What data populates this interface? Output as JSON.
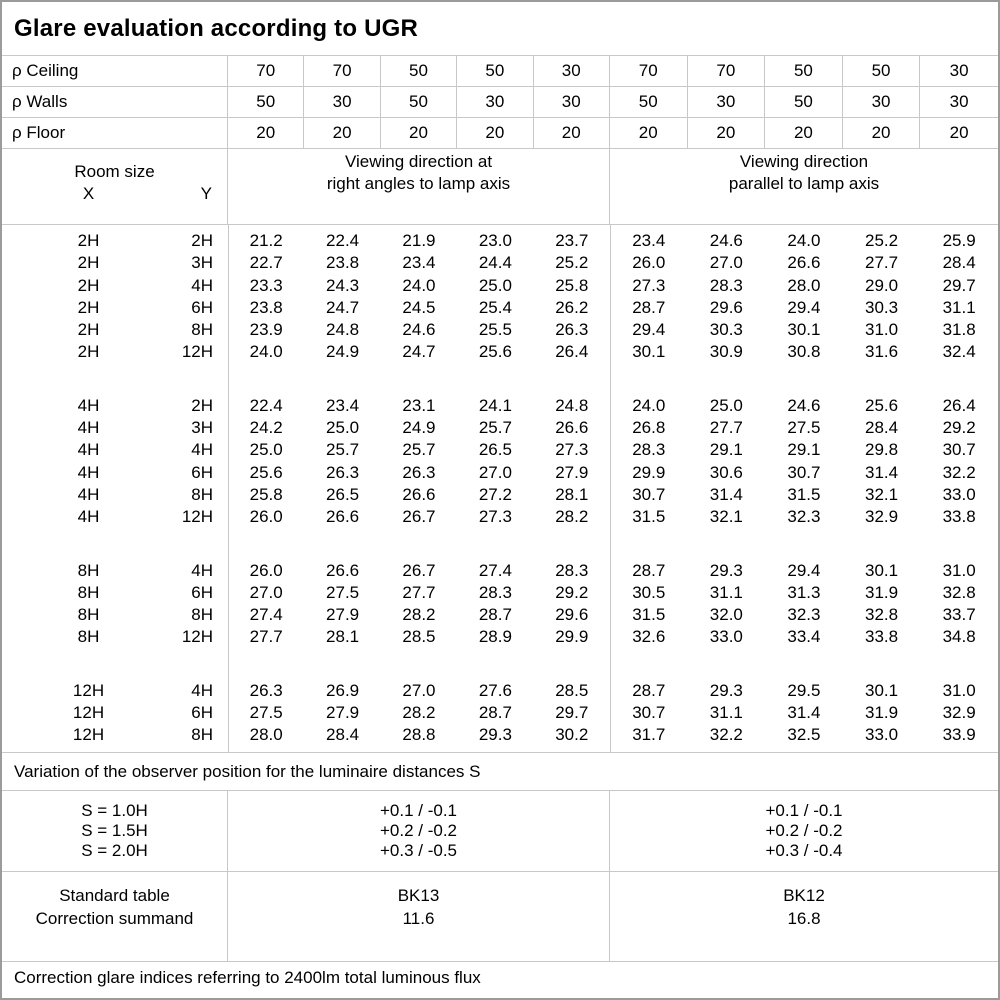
{
  "title": "Glare evaluation according to UGR",
  "reflectance": {
    "rows": [
      {
        "label": "ρ Ceiling",
        "values": [
          "70",
          "70",
          "50",
          "50",
          "30",
          "70",
          "70",
          "50",
          "50",
          "30"
        ]
      },
      {
        "label": "ρ Walls",
        "values": [
          "50",
          "30",
          "50",
          "30",
          "30",
          "50",
          "30",
          "50",
          "30",
          "30"
        ]
      },
      {
        "label": "ρ Floor",
        "values": [
          "20",
          "20",
          "20",
          "20",
          "20",
          "20",
          "20",
          "20",
          "20",
          "20"
        ]
      }
    ]
  },
  "header": {
    "room_size": "Room size",
    "x": "X",
    "y": "Y",
    "right_angles_line1": "Viewing direction at",
    "right_angles_line2": "right angles to lamp axis",
    "parallel_line1": "Viewing direction",
    "parallel_line2": "parallel to lamp axis"
  },
  "ugr_blocks": [
    {
      "rows": [
        {
          "x": "2H",
          "y": "2H",
          "values": [
            "21.2",
            "22.4",
            "21.9",
            "23.0",
            "23.7",
            "23.4",
            "24.6",
            "24.0",
            "25.2",
            "25.9"
          ]
        },
        {
          "x": "2H",
          "y": "3H",
          "values": [
            "22.7",
            "23.8",
            "23.4",
            "24.4",
            "25.2",
            "26.0",
            "27.0",
            "26.6",
            "27.7",
            "28.4"
          ]
        },
        {
          "x": "2H",
          "y": "4H",
          "values": [
            "23.3",
            "24.3",
            "24.0",
            "25.0",
            "25.8",
            "27.3",
            "28.3",
            "28.0",
            "29.0",
            "29.7"
          ]
        },
        {
          "x": "2H",
          "y": "6H",
          "values": [
            "23.8",
            "24.7",
            "24.5",
            "25.4",
            "26.2",
            "28.7",
            "29.6",
            "29.4",
            "30.3",
            "31.1"
          ]
        },
        {
          "x": "2H",
          "y": "8H",
          "values": [
            "23.9",
            "24.8",
            "24.6",
            "25.5",
            "26.3",
            "29.4",
            "30.3",
            "30.1",
            "31.0",
            "31.8"
          ]
        },
        {
          "x": "2H",
          "y": "12H",
          "values": [
            "24.0",
            "24.9",
            "24.7",
            "25.6",
            "26.4",
            "30.1",
            "30.9",
            "30.8",
            "31.6",
            "32.4"
          ]
        }
      ]
    },
    {
      "rows": [
        {
          "x": "4H",
          "y": "2H",
          "values": [
            "22.4",
            "23.4",
            "23.1",
            "24.1",
            "24.8",
            "24.0",
            "25.0",
            "24.6",
            "25.6",
            "26.4"
          ]
        },
        {
          "x": "4H",
          "y": "3H",
          "values": [
            "24.2",
            "25.0",
            "24.9",
            "25.7",
            "26.6",
            "26.8",
            "27.7",
            "27.5",
            "28.4",
            "29.2"
          ]
        },
        {
          "x": "4H",
          "y": "4H",
          "values": [
            "25.0",
            "25.7",
            "25.7",
            "26.5",
            "27.3",
            "28.3",
            "29.1",
            "29.1",
            "29.8",
            "30.7"
          ]
        },
        {
          "x": "4H",
          "y": "6H",
          "values": [
            "25.6",
            "26.3",
            "26.3",
            "27.0",
            "27.9",
            "29.9",
            "30.6",
            "30.7",
            "31.4",
            "32.2"
          ]
        },
        {
          "x": "4H",
          "y": "8H",
          "values": [
            "25.8",
            "26.5",
            "26.6",
            "27.2",
            "28.1",
            "30.7",
            "31.4",
            "31.5",
            "32.1",
            "33.0"
          ]
        },
        {
          "x": "4H",
          "y": "12H",
          "values": [
            "26.0",
            "26.6",
            "26.7",
            "27.3",
            "28.2",
            "31.5",
            "32.1",
            "32.3",
            "32.9",
            "33.8"
          ]
        }
      ]
    },
    {
      "rows": [
        {
          "x": "8H",
          "y": "4H",
          "values": [
            "26.0",
            "26.6",
            "26.7",
            "27.4",
            "28.3",
            "28.7",
            "29.3",
            "29.4",
            "30.1",
            "31.0"
          ]
        },
        {
          "x": "8H",
          "y": "6H",
          "values": [
            "27.0",
            "27.5",
            "27.7",
            "28.3",
            "29.2",
            "30.5",
            "31.1",
            "31.3",
            "31.9",
            "32.8"
          ]
        },
        {
          "x": "8H",
          "y": "8H",
          "values": [
            "27.4",
            "27.9",
            "28.2",
            "28.7",
            "29.6",
            "31.5",
            "32.0",
            "32.3",
            "32.8",
            "33.7"
          ]
        },
        {
          "x": "8H",
          "y": "12H",
          "values": [
            "27.7",
            "28.1",
            "28.5",
            "28.9",
            "29.9",
            "32.6",
            "33.0",
            "33.4",
            "33.8",
            "34.8"
          ]
        }
      ]
    },
    {
      "rows": [
        {
          "x": "12H",
          "y": "4H",
          "values": [
            "26.3",
            "26.9",
            "27.0",
            "27.6",
            "28.5",
            "28.7",
            "29.3",
            "29.5",
            "30.1",
            "31.0"
          ]
        },
        {
          "x": "12H",
          "y": "6H",
          "values": [
            "27.5",
            "27.9",
            "28.2",
            "28.7",
            "29.7",
            "30.7",
            "31.1",
            "31.4",
            "31.9",
            "32.9"
          ]
        },
        {
          "x": "12H",
          "y": "8H",
          "values": [
            "28.0",
            "28.4",
            "28.8",
            "29.3",
            "30.2",
            "31.7",
            "32.2",
            "32.5",
            "33.0",
            "33.9"
          ]
        }
      ]
    }
  ],
  "variation_note": "Variation of the observer position for the luminaire distances S",
  "observer_variation": {
    "labels": [
      "S = 1.0H",
      "S = 1.5H",
      "S = 2.0H"
    ],
    "right_angles": [
      "+0.1 / -0.1",
      "+0.2 / -0.2",
      "+0.3 / -0.5"
    ],
    "parallel": [
      "+0.1 / -0.1",
      "+0.2 / -0.2",
      "+0.3 / -0.4"
    ]
  },
  "summary": {
    "labels": [
      "Standard table",
      "Correction summand"
    ],
    "right_angles": [
      "BK13",
      "11.6"
    ],
    "parallel": [
      "BK12",
      "16.8"
    ]
  },
  "footer_note": "Correction glare indices referring to 2400lm total luminous flux"
}
